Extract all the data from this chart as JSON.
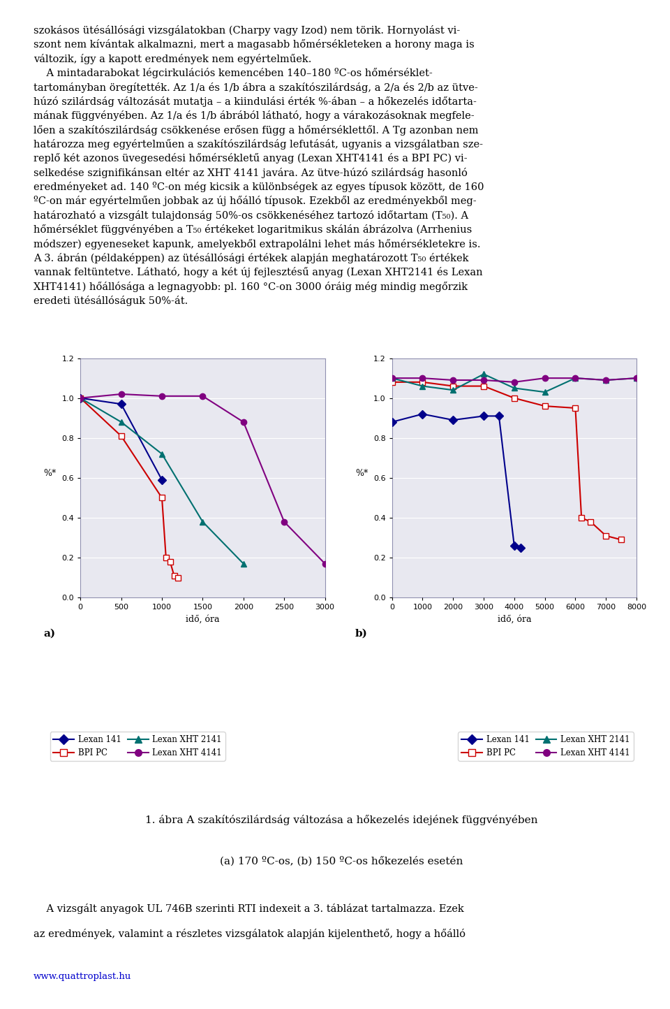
{
  "chart_a": {
    "xlabel": "idő, óra",
    "ylabel": "%*",
    "xlim": [
      0,
      3000
    ],
    "ylim": [
      0,
      1.2
    ],
    "xticks": [
      0,
      500,
      1000,
      1500,
      2000,
      2500,
      3000
    ],
    "yticks": [
      0,
      0.2,
      0.4,
      0.6,
      0.8,
      1.0,
      1.2
    ],
    "series": [
      {
        "name": "Lexan 141",
        "color": "#00008B",
        "marker": "D",
        "x": [
          0,
          500,
          1000
        ],
        "y": [
          1.0,
          0.97,
          0.59
        ]
      },
      {
        "name": "BPI PC",
        "color": "#CC0000",
        "marker": "s",
        "x": [
          0,
          500,
          1000,
          1050,
          1100,
          1150,
          1200
        ],
        "y": [
          1.0,
          0.81,
          0.5,
          0.2,
          0.18,
          0.11,
          0.1
        ]
      },
      {
        "name": "Lexan XHT 2141",
        "color": "#007070",
        "marker": "^",
        "x": [
          0,
          500,
          1000,
          1500,
          2000
        ],
        "y": [
          1.0,
          0.88,
          0.72,
          0.38,
          0.17
        ]
      },
      {
        "name": "Lexan XHT 4141",
        "color": "#800080",
        "marker": "o",
        "x": [
          0,
          500,
          1000,
          1500,
          2000,
          2500,
          3000
        ],
        "y": [
          1.0,
          1.02,
          1.01,
          1.01,
          0.88,
          0.38,
          0.17
        ]
      }
    ]
  },
  "chart_b": {
    "xlabel": "idő, óra",
    "ylabel": "%*",
    "xlim": [
      0,
      8000
    ],
    "ylim": [
      0,
      1.2
    ],
    "xticks": [
      0,
      1000,
      2000,
      3000,
      4000,
      5000,
      6000,
      7000,
      8000
    ],
    "yticks": [
      0,
      0.2,
      0.4,
      0.6,
      0.8,
      1.0,
      1.2
    ],
    "series": [
      {
        "name": "Lexan 141",
        "color": "#00008B",
        "marker": "D",
        "x": [
          0,
          1000,
          2000,
          3000,
          3500,
          4000,
          4200
        ],
        "y": [
          0.88,
          0.92,
          0.89,
          0.91,
          0.91,
          0.26,
          0.25
        ]
      },
      {
        "name": "BPI PC",
        "color": "#CC0000",
        "marker": "s",
        "x": [
          0,
          1000,
          2000,
          3000,
          4000,
          5000,
          6000,
          6200,
          6500,
          7000,
          7500
        ],
        "y": [
          1.08,
          1.08,
          1.06,
          1.06,
          1.0,
          0.96,
          0.95,
          0.4,
          0.38,
          0.31,
          0.29
        ]
      },
      {
        "name": "Lexan XHT 2141",
        "color": "#007070",
        "marker": "^",
        "x": [
          0,
          1000,
          2000,
          3000,
          4000,
          5000,
          6000,
          7000,
          8000
        ],
        "y": [
          1.1,
          1.06,
          1.04,
          1.12,
          1.05,
          1.03,
          1.1,
          1.09,
          1.1
        ]
      },
      {
        "name": "Lexan XHT 4141",
        "color": "#800080",
        "marker": "o",
        "x": [
          0,
          1000,
          2000,
          3000,
          4000,
          5000,
          6000,
          7000,
          8000
        ],
        "y": [
          1.1,
          1.1,
          1.09,
          1.09,
          1.08,
          1.1,
          1.1,
          1.09,
          1.1
        ]
      }
    ]
  },
  "caption_line1": "1. ábra A szakítószilárdság változása a hőkezelés idejének függvényében",
  "caption_line2": "(a) 170 ºC-os, (b) 150 ºC-os hőkezelés esetén",
  "text_above": [
    "szokásos ütésállósági vizsgálatokban (Charpy vagy Izod) nem törik. Hornyolást vi-",
    "szont nem kívántak alkalmazni, mert a magasabb hőmérsékleteken a horony maga is",
    "változik, így a kapott eredmények nem egyértelműek.",
    "    A mintadarabokat légcirkulációs kemencében 140–180 ºC-os hőmérséklet-",
    "tartományban öregítették. Az 1/a és 1/b ábra a szakítószilárdság, a 2/a és 2/b az ütve-",
    "húzó szilárdság változását mutatja – a kiindulási érték %-ában – a hőkezelés időtarta-",
    "mának függvényében. Az 1/a és 1/b ábrából látható, hogy a várakozásoknak megfele-",
    "lően a szakítószilárdság csökkenése erősen függ a hőmérséklettől. A Tg azonban nem",
    "határozza meg egyértelműen a szakítószilárdság lefutását, ugyanis a vizsgálatban sze-",
    "replő két azonos üvegesedési hőmérsékletű anyag (Lexan XHT4141 és a BPI PC) vi-",
    "selkedése szignifikánsan eltér az XHT 4141 javára. Az ütve-húzó szilárdság hasonló",
    "eredményeket ad. 140 ºC-on még kicsik a különbségek az egyes típusok között, de 160",
    "ºC-on már egyértelműen jobbak az új hőálló típusok. Ezekből az eredményekből meg-",
    "határozható a vizsgált tulajdonság 50%-os csökkenéséhez tartozó időtartam (T₅₀). A",
    "hőmérséklet függvényében a T₅₀ értékeket logaritmikus skálán ábrázolva (Arrhenius",
    "módszer) egyeneseket kapunk, amelyekből extrapolálni lehet más hőmérsékletekre is.",
    "A 3. ábrán (példaképpen) az ütésállósági értékek alapján meghatározott T₅₀ értékek",
    "vannak feltüntetve. Látható, hogy a két új fejlesztésű anyag (Lexan XHT2141 és Lexan",
    "XHT4141) hőállósága a legnagyobb: pl. 160 °C-on 3000 óráig még mindig megőrzik",
    "eredeti ütésállóságuk 50%-át."
  ],
  "bottom_text_lines": [
    "    A vizsgált anyagok UL 746B szerinti RTI indexeit a 3. táblázat tartalmazza. Ezek",
    "az eredmények, valamint a részletes vizsgálatok alapján kijelenthető, hogy a hőálló"
  ],
  "footer_url": "www.quattroplast.hu",
  "legend_entries": [
    {
      "name": "Lexan 141",
      "color": "#00008B",
      "marker": "D"
    },
    {
      "name": "BPI PC",
      "color": "#CC0000",
      "marker": "s"
    },
    {
      "name": "Lexan XHT 2141",
      "color": "#007070",
      "marker": "^"
    },
    {
      "name": "Lexan XHT 4141",
      "color": "#800080",
      "marker": "o"
    }
  ],
  "bg_color": "#E8E8F0",
  "grid_color": "white",
  "spine_color": "#9090B0"
}
